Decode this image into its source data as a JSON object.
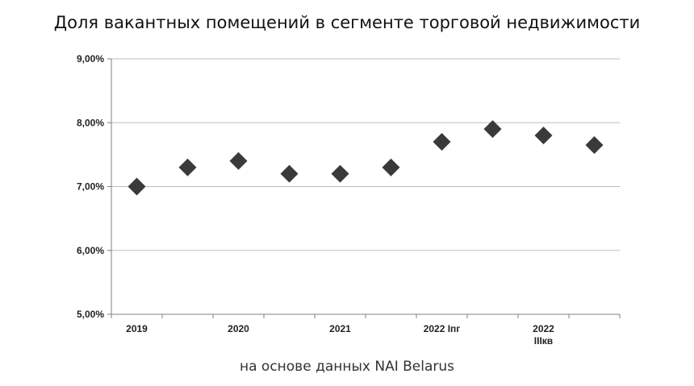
{
  "title": "Доля вакантных помещений в сегменте торговой недвижимости",
  "source": "на основе данных NAI Belarus",
  "colors": {
    "marker": "#3a3a3a",
    "grid": "#bdbdbd",
    "axis": "#808080"
  },
  "chart_data": {
    "type": "scatter",
    "title": "Доля вакантных помещений в сегменте торговой недвижимости",
    "xlabel": "",
    "ylabel": "",
    "ylim": [
      5.0,
      9.0
    ],
    "y_ticks": [
      "5,00%",
      "6,00%",
      "7,00%",
      "8,00%",
      "9,00%"
    ],
    "y_tick_values": [
      5.0,
      6.0,
      7.0,
      8.0,
      9.0
    ],
    "x_tick_labels": [
      {
        "lines": [
          "2019"
        ],
        "at": 0
      },
      {
        "lines": [
          "2020"
        ],
        "at": 2
      },
      {
        "lines": [
          "2021"
        ],
        "at": 4
      },
      {
        "lines": [
          "2022 Iпг"
        ],
        "at": 6
      },
      {
        "lines": [
          "2022",
          "IIIкв"
        ],
        "at": 8
      }
    ],
    "marker": "diamond",
    "grid": true,
    "legend": "none",
    "values": [
      7.0,
      7.3,
      7.4,
      7.2,
      7.2,
      7.3,
      7.7,
      7.9,
      7.8,
      7.65
    ]
  }
}
